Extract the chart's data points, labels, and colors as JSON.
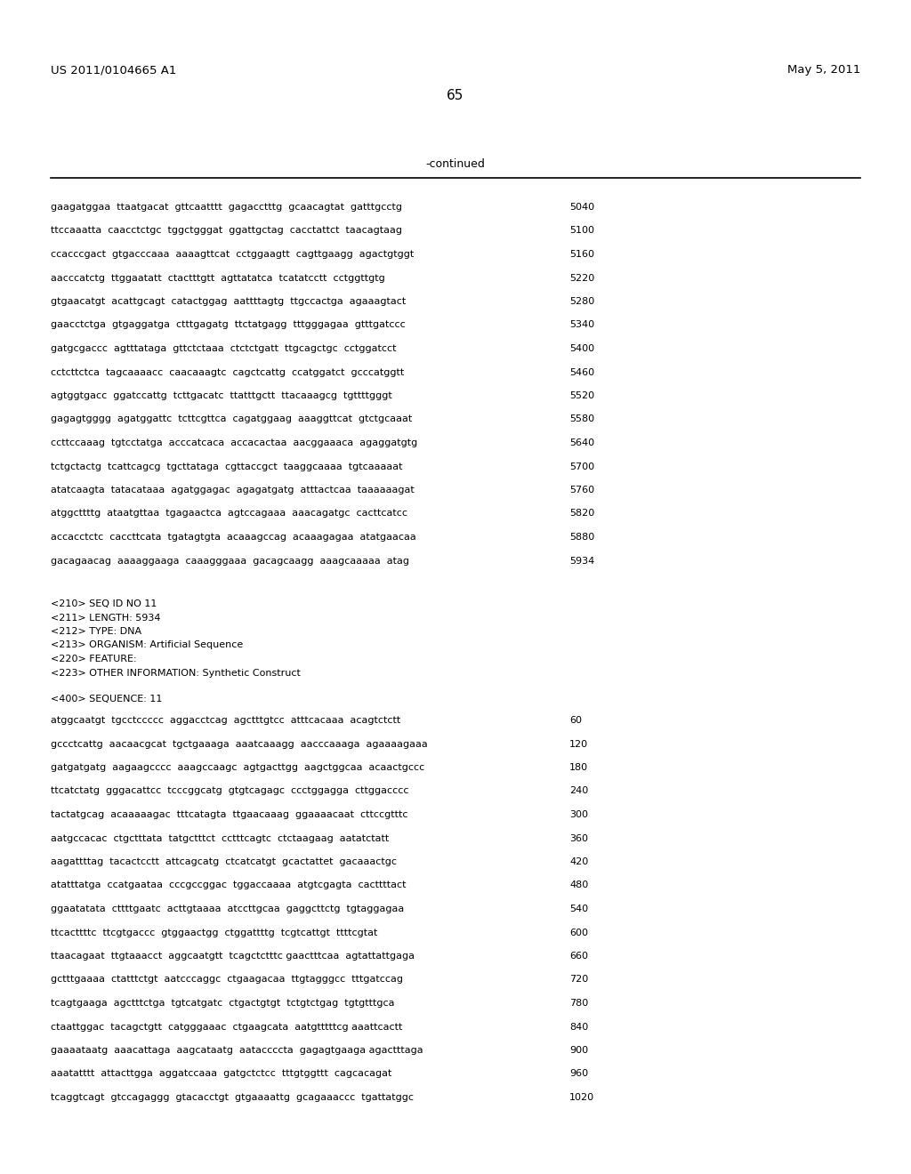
{
  "header_left": "US 2011/0104665 A1",
  "header_right": "May 5, 2011",
  "page_number": "65",
  "continued_label": "-continued",
  "background_color": "#ffffff",
  "text_color": "#000000",
  "sequence_lines_top": [
    {
      "seq": "gaagatggaa  ttaatgacat  gttcaatttt  gagacctttg  gcaacagtat  gatttgcctg",
      "num": "5040"
    },
    {
      "seq": "ttccaaatta  caacctctgc  tggctgggat  ggattgctag  cacctattct  taacagtaag",
      "num": "5100"
    },
    {
      "seq": "ccacccgact  gtgacccaaa  aaaagttcat  cctggaagtt  cagttgaagg  agactgtggt",
      "num": "5160"
    },
    {
      "seq": "aacccatctg  ttggaatatt  ctactttgtt  agttatatca  tcatatcctt  cctggttgtg",
      "num": "5220"
    },
    {
      "seq": "gtgaacatgt  acattgcagt  catactggag  aattttagtg  ttgccactga  agaaagtact",
      "num": "5280"
    },
    {
      "seq": "gaacctctga  gtgaggatga  ctttgagatg  ttctatgagg  tttgggagaa  gtttgatccc",
      "num": "5340"
    },
    {
      "seq": "gatgcgaccc  agtttataga  gttctctaaa  ctctctgatt  ttgcagctgc  cctggatcct",
      "num": "5400"
    },
    {
      "seq": "cctcttctca  tagcaaaacc  caacaaagtc  cagctcattg  ccatggatct  gcccatggtt",
      "num": "5460"
    },
    {
      "seq": "agtggtgacc  ggatccattg  tcttgacatc  ttatttgctt  ttacaaagcg  tgttttgggt",
      "num": "5520"
    },
    {
      "seq": "gagagtgggg  agatggattc  tcttcgttca  cagatggaag  aaaggttcat  gtctgcaaat",
      "num": "5580"
    },
    {
      "seq": "ccttccaaag  tgtcctatga  acccatcaca  accacactaa  aacggaaaca  agaggatgtg",
      "num": "5640"
    },
    {
      "seq": "tctgctactg  tcattcagcg  tgcttataga  cgttaccgct  taaggcaaaa  tgtcaaaaat",
      "num": "5700"
    },
    {
      "seq": "atatcaagta  tatacataaa  agatggagac  agagatgatg  atttactcaa  taaaaaagat",
      "num": "5760"
    },
    {
      "seq": "atggcttttg  ataatgttaa  tgagaactca  agtccagaaa  aaacagatgc  cacttcatcc",
      "num": "5820"
    },
    {
      "seq": "accacctctc  caccttcata  tgatagtgta  acaaagccag  acaaagagaa  atatgaacaa",
      "num": "5880"
    },
    {
      "seq": "gacagaacag  aaaaggaaga  caaagggaaa  gacagcaagg  aaagcaaaaa  atag",
      "num": "5934"
    }
  ],
  "metadata_lines": [
    "<210> SEQ ID NO 11",
    "<211> LENGTH: 5934",
    "<212> TYPE: DNA",
    "<213> ORGANISM: Artificial Sequence",
    "<220> FEATURE:",
    "<223> OTHER INFORMATION: Synthetic Construct"
  ],
  "sequence_label": "<400> SEQUENCE: 11",
  "sequence_lines_bottom": [
    {
      "seq": "atggcaatgt  tgcctccccc  aggacctcag  agctttgtcc  atttcacaaa  acagtctctt",
      "num": "60"
    },
    {
      "seq": "gccctcattg  aacaacgcat  tgctgaaaga  aaatcaaagg  aacccaaaga  agaaaagaaa",
      "num": "120"
    },
    {
      "seq": "gatgatgatg  aagaagcccc  aaagccaagc  agtgacttgg  aagctggcaa  acaactgccc",
      "num": "180"
    },
    {
      "seq": "ttcatctatg  gggacattcc  tcccggcatg  gtgtcagagc  ccctggagga  cttggacccc",
      "num": "240"
    },
    {
      "seq": "tactatgcag  acaaaaagac  tttcatagta  ttgaacaaag  ggaaaacaat  cttccgtttc",
      "num": "300"
    },
    {
      "seq": "aatgccacac  ctgctttata  tatgctttct  cctttcagtc  ctctaagaag  aatatctatt",
      "num": "360"
    },
    {
      "seq": "aagattttag  tacactcctt  attcagcatg  ctcatcatgt  gcactattet  gacaaactgc",
      "num": "420"
    },
    {
      "seq": "atatttatga  ccatgaataa  cccgccggac  tggaccaaaa  atgtcgagta  cacttttact",
      "num": "480"
    },
    {
      "seq": "ggaatatata  cttttgaatc  acttgtaaaa  atccttgcaa  gaggcttctg  tgtaggagaa",
      "num": "540"
    },
    {
      "seq": "ttcacttttc  ttcgtgaccc  gtggaactgg  ctggattttg  tcgtcattgt  ttttcgtat",
      "num": "600"
    },
    {
      "seq": "ttaacagaat  ttgtaaacct  aggcaatgtt  tcagctctttc gaactttcaa  agtattattgaga",
      "num": "660"
    },
    {
      "seq": "gctttgaaaa  ctatttctgt  aatcccaggc  ctgaagacaa  ttgtagggcc  tttgatccag",
      "num": "720"
    },
    {
      "seq": "tcagtgaaga  agctttctga  tgtcatgatc  ctgactgtgt  tctgtctgag  tgtgtttgca",
      "num": "780"
    },
    {
      "seq": "ctaattggac  tacagctgtt  catgggaaac  ctgaagcata  aatgtttttcg aaattcactt",
      "num": "840"
    },
    {
      "seq": "gaaaataatg  aaacattaga  aagcataatg  aataccccta  gagagtgaaga agactttaga",
      "num": "900"
    },
    {
      "seq": "aaatatttt  attacttgga  aggatccaaa  gatgctctcc  tttgtggttt  cagcacagat",
      "num": "960"
    },
    {
      "seq": "tcaggtcagt  gtccagaggg  gtacacctgt  gtgaaaattg  gcagaaaccc  tgattatggc",
      "num": "1020"
    }
  ]
}
